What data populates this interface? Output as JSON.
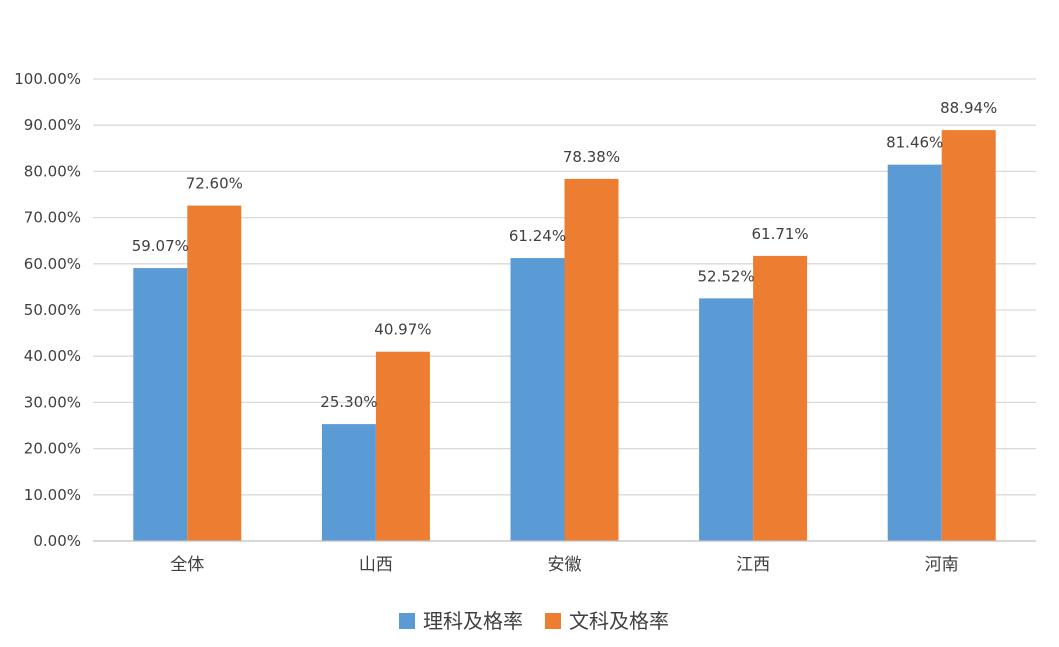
{
  "chart_data": {
    "type": "bar",
    "categories": [
      "全体",
      "山西",
      "安徽",
      "江西",
      "河南"
    ],
    "series": [
      {
        "name": "理科及格率",
        "color": "#5b9bd5",
        "values": [
          59.07,
          25.3,
          61.24,
          52.52,
          81.46
        ],
        "labels": [
          "59.07%",
          "25.30%",
          "61.24%",
          "52.52%",
          "81.46%"
        ]
      },
      {
        "name": "文科及格率",
        "color": "#ed7d31",
        "values": [
          72.6,
          40.97,
          78.38,
          61.71,
          88.94
        ],
        "labels": [
          "72.60%",
          "40.97%",
          "78.38%",
          "61.71%",
          "88.94%"
        ]
      }
    ],
    "yticks": [
      "0.00%",
      "10.00%",
      "20.00%",
      "30.00%",
      "40.00%",
      "50.00%",
      "60.00%",
      "70.00%",
      "80.00%",
      "90.00%",
      "100.00%"
    ],
    "ylim": [
      0,
      100
    ],
    "grid": true,
    "legend_position": "bottom",
    "gridline_color": "#d9d9d9",
    "axis_color": "#bfbfbf"
  }
}
